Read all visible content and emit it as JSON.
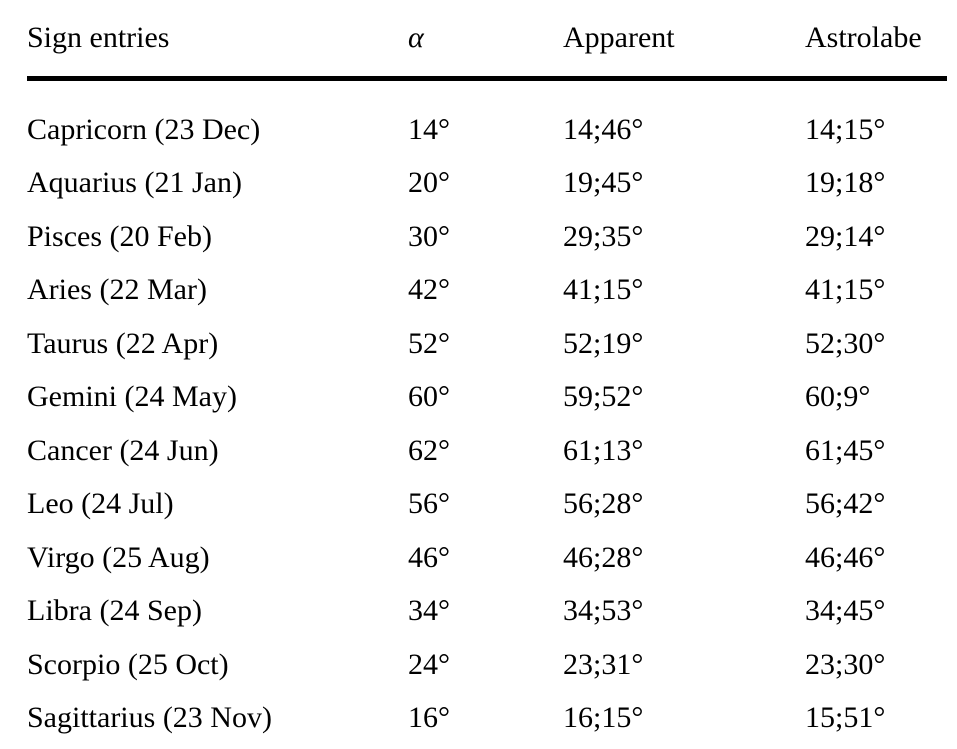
{
  "page": {
    "background_color": "#ffffff",
    "text_color": "#000000",
    "rule_color": "#000000"
  },
  "table": {
    "headers": [
      {
        "key": "sign",
        "label": "Sign entries"
      },
      {
        "key": "alpha",
        "label": "α"
      },
      {
        "key": "apparent",
        "label": "Apparent"
      },
      {
        "key": "astrolabe",
        "label": "Astrolabe"
      }
    ],
    "rows": [
      [
        "Capricorn (23 Dec)",
        "14°",
        "14;46°",
        "14;15°"
      ],
      [
        "Aquarius (21 Jan)",
        "20°",
        "19;45°",
        "19;18°"
      ],
      [
        "Pisces (20 Feb)",
        "30°",
        "29;35°",
        "29;14°"
      ],
      [
        "Aries (22 Mar)",
        "42°",
        "41;15°",
        "41;15°"
      ],
      [
        "Taurus (22 Apr)",
        "52°",
        "52;19°",
        "52;30°"
      ],
      [
        "Gemini (24 May)",
        "60°",
        "59;52°",
        "60;9°"
      ],
      [
        "Cancer (24 Jun)",
        "62°",
        "61;13°",
        "61;45°"
      ],
      [
        "Leo (24 Jul)",
        "56°",
        "56;28°",
        "56;42°"
      ],
      [
        "Virgo (25 Aug)",
        "46°",
        "46;28°",
        "46;46°"
      ],
      [
        "Libra (24 Sep)",
        "34°",
        "34;53°",
        "34;45°"
      ],
      [
        "Scorpio (25 Oct)",
        "24°",
        "23;31°",
        "23;30°"
      ],
      [
        "Sagittarius (23 Nov)",
        "16°",
        "16;15°",
        "15;51°"
      ]
    ]
  }
}
